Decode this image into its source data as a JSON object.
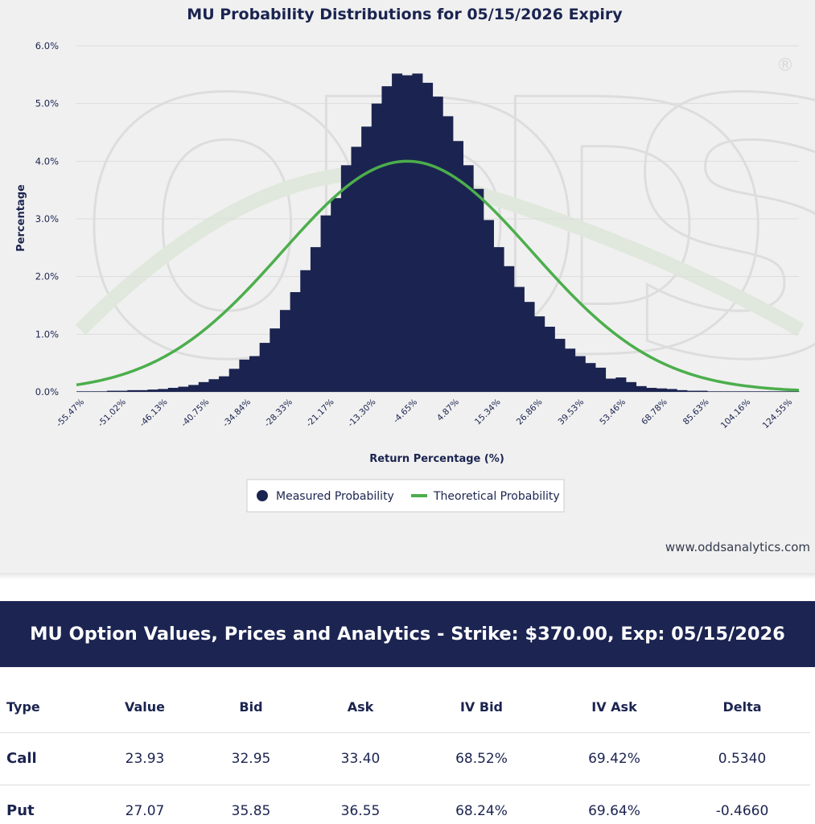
{
  "chart_data": {
    "type": "bar",
    "title": "MU Probability Distributions for 05/15/2026 Expiry",
    "xlabel": "Return Percentage (%)",
    "ylabel": "Percentage",
    "ylim": [
      0,
      6
    ],
    "y_ticks": [
      "0.0%",
      "1.0%",
      "2.0%",
      "3.0%",
      "4.0%",
      "5.0%",
      "6.0%"
    ],
    "x_ticks": [
      "-55.47%",
      "-51.02%",
      "-46.13%",
      "-40.75%",
      "-34.84%",
      "-28.33%",
      "-21.17%",
      "-13.30%",
      "-4.65%",
      "4.87%",
      "15.34%",
      "26.86%",
      "39.53%",
      "53.46%",
      "68.78%",
      "85.63%",
      "104.16%",
      "124.55%"
    ],
    "grid": true,
    "legend_placement": "bottom-center",
    "series": [
      {
        "name": "Measured Probability",
        "kind": "bar",
        "color": "#1b2450",
        "values": [
          0.01,
          0.01,
          0.01,
          0.02,
          0.02,
          0.03,
          0.03,
          0.04,
          0.05,
          0.07,
          0.09,
          0.12,
          0.17,
          0.22,
          0.27,
          0.4,
          0.56,
          0.62,
          0.85,
          1.1,
          1.42,
          1.73,
          2.11,
          2.51,
          3.06,
          3.36,
          3.93,
          4.25,
          4.6,
          5.0,
          5.3,
          5.52,
          5.49,
          5.52,
          5.36,
          5.12,
          4.78,
          4.35,
          3.93,
          3.52,
          2.98,
          2.51,
          2.18,
          1.82,
          1.56,
          1.31,
          1.13,
          0.92,
          0.75,
          0.62,
          0.5,
          0.42,
          0.23,
          0.25,
          0.17,
          0.1,
          0.07,
          0.06,
          0.05,
          0.03,
          0.02,
          0.02,
          0.01,
          0.01,
          0.01,
          0.01,
          0.01,
          0.01,
          0.01,
          0.01,
          0.01
        ]
      },
      {
        "name": "Theoretical Probability",
        "kind": "line",
        "color": "#4cae4c",
        "peak": 4.0,
        "center_bar": 32,
        "sigma_bars": 12.3
      }
    ]
  },
  "watermark": {
    "letters": "ODDS",
    "registered_mark": "®"
  },
  "credit": "www.oddsanalytics.com",
  "table": {
    "title": "MU Option Values, Prices and Analytics - Strike: $370.00, Exp: 05/15/2026",
    "columns": [
      "Type",
      "Value",
      "Bid",
      "Ask",
      "IV Bid",
      "IV Ask",
      "Delta"
    ],
    "rows": [
      {
        "type": "Call",
        "value": "23.93",
        "bid": "32.95",
        "ask": "33.40",
        "iv_bid": "68.52%",
        "iv_ask": "69.42%",
        "delta": "0.5340"
      },
      {
        "type": "Put",
        "value": "27.07",
        "bid": "35.85",
        "ask": "36.55",
        "iv_bid": "68.24%",
        "iv_ask": "69.64%",
        "delta": "-0.4660"
      }
    ]
  }
}
